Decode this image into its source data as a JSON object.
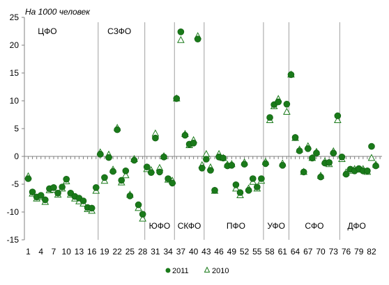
{
  "chart_data": {
    "type": "scatter",
    "title": "",
    "ylabel": "На 1000 человек",
    "ylim": [
      -15,
      25
    ],
    "yticks": [
      "-15",
      "-10",
      "-5",
      "0",
      "5",
      "10",
      "15",
      "20",
      "25"
    ],
    "xlim": [
      1,
      84
    ],
    "xticks": [
      "1",
      "4",
      "7",
      "10",
      "13",
      "16",
      "19",
      "22",
      "25",
      "28",
      "31",
      "34",
      "37",
      "40",
      "43",
      "46",
      "49",
      "52",
      "55",
      "58",
      "61",
      "64",
      "67",
      "70",
      "73",
      "76",
      "79",
      "82"
    ],
    "grid": false,
    "legend": {
      "position": "bottom-center",
      "entries": [
        "2011",
        "2010"
      ]
    },
    "colors": {
      "series2011": "#1a7a1a",
      "series2010": "#1a7a1a",
      "separator": "#a0a0a0",
      "axis": "#808080"
    },
    "region_boundaries": [
      17.5,
      28.5,
      35.5,
      42.5,
      56.5,
      62.5,
      74.5
    ],
    "region_labels": [
      {
        "label": "ЦФО",
        "x": 5.5,
        "y": 22.5
      },
      {
        "label": "СЗФО",
        "x": 22.5,
        "y": 22.5
      },
      {
        "label": "ЮФО",
        "x": 32,
        "y": -12.5
      },
      {
        "label": "СКФО",
        "x": 39,
        "y": -12.5
      },
      {
        "label": "ПФО",
        "x": 50,
        "y": -12.5
      },
      {
        "label": "УФО",
        "x": 59.5,
        "y": -12.5
      },
      {
        "label": "СФО",
        "x": 68.5,
        "y": -12.5
      },
      {
        "label": "ДФО",
        "x": 78.5,
        "y": -12.5
      }
    ],
    "series": [
      {
        "name": "2011",
        "marker": "circle",
        "x": [
          1,
          2,
          3,
          4,
          5,
          6,
          7,
          8,
          9,
          10,
          11,
          12,
          13,
          14,
          15,
          16,
          17,
          18,
          19,
          20,
          21,
          22,
          23,
          24,
          25,
          26,
          27,
          28,
          29,
          30,
          31,
          32,
          33,
          34,
          35,
          36,
          37,
          38,
          39,
          40,
          41,
          42,
          43,
          44,
          45,
          46,
          47,
          48,
          49,
          50,
          51,
          52,
          53,
          54,
          55,
          56,
          57,
          58,
          59,
          60,
          61,
          62,
          63,
          64,
          65,
          66,
          67,
          68,
          69,
          70,
          71,
          72,
          73,
          74,
          75,
          76,
          77,
          78,
          79,
          80,
          81,
          82,
          83
        ],
        "y": [
          -4.0,
          -6.4,
          -7.3,
          -7.0,
          -7.8,
          -5.8,
          -5.6,
          -6.6,
          -5.5,
          -4.1,
          -6.6,
          -7.2,
          -7.5,
          -8.0,
          -9.2,
          -9.3,
          -5.6,
          0.4,
          -3.8,
          -0.2,
          -2.7,
          4.8,
          -4.3,
          -2.6,
          -7.1,
          -0.7,
          -8.7,
          -10.4,
          -1.9,
          -2.9,
          3.3,
          -2.8,
          -0.1,
          -4.0,
          -4.8,
          10.4,
          22.4,
          3.8,
          2.2,
          2.4,
          21.1,
          -2.1,
          -0.5,
          -2.5,
          -6.1,
          -0.1,
          -0.3,
          -1.7,
          -1.6,
          -5.1,
          -6.5,
          -1.4,
          -6.1,
          -4.0,
          -5.5,
          -4.0,
          -1.3,
          7.0,
          9.3,
          9.8,
          -1.6,
          9.4,
          14.7,
          3.4,
          1.0,
          -2.8,
          1.4,
          -0.3,
          0.6,
          -3.7,
          -1.2,
          -1.1,
          0.6,
          7.3,
          -0.1,
          -3.2,
          -2.3,
          -2.6,
          -2.2,
          -2.6,
          -2.6,
          1.8,
          -1.7
        ]
      },
      {
        "name": "2010",
        "marker": "triangle",
        "x": [
          1,
          2,
          3,
          4,
          5,
          6,
          7,
          8,
          9,
          10,
          11,
          12,
          13,
          14,
          15,
          16,
          17,
          18,
          19,
          20,
          21,
          22,
          23,
          24,
          25,
          26,
          27,
          28,
          29,
          30,
          31,
          32,
          33,
          34,
          35,
          36,
          37,
          38,
          39,
          40,
          41,
          42,
          43,
          44,
          45,
          46,
          47,
          48,
          49,
          50,
          51,
          52,
          53,
          54,
          55,
          56,
          57,
          58,
          59,
          60,
          61,
          62,
          63,
          64,
          65,
          66,
          67,
          68,
          69,
          70,
          71,
          72,
          73,
          74,
          75,
          76,
          77,
          78,
          79,
          80,
          81,
          82,
          83
        ],
        "y": [
          -3.6,
          -6.7,
          -7.6,
          -7.3,
          -8.2,
          -6.1,
          -6.0,
          -6.9,
          -5.8,
          -4.5,
          -6.9,
          -7.6,
          -8.1,
          -8.5,
          -9.5,
          -9.8,
          -6.2,
          0.7,
          -4.4,
          0.3,
          -2.4,
          5.1,
          -4.7,
          -3.4,
          -6.9,
          -0.5,
          -9.3,
          -11.2,
          -2.3,
          -2.5,
          4.1,
          -2.1,
          0.0,
          -4.2,
          -4.4,
          10.4,
          20.9,
          4.0,
          2.0,
          2.9,
          21.6,
          -1.6,
          0.4,
          -2.0,
          -6.2,
          0.4,
          -0.3,
          -1.5,
          -1.4,
          -5.8,
          -7.0,
          -1.1,
          -5.8,
          -4.6,
          -5.8,
          -4.4,
          -1.0,
          6.5,
          9.0,
          10.3,
          -1.3,
          8.0,
          14.7,
          3.3,
          1.2,
          -2.8,
          1.8,
          -0.3,
          0.8,
          -3.5,
          -0.9,
          -1.4,
          0.9,
          6.5,
          -0.5,
          -2.9,
          -2.6,
          -2.3,
          -2.4,
          -2.3,
          -2.8,
          -0.3,
          -1.5
        ]
      }
    ]
  }
}
